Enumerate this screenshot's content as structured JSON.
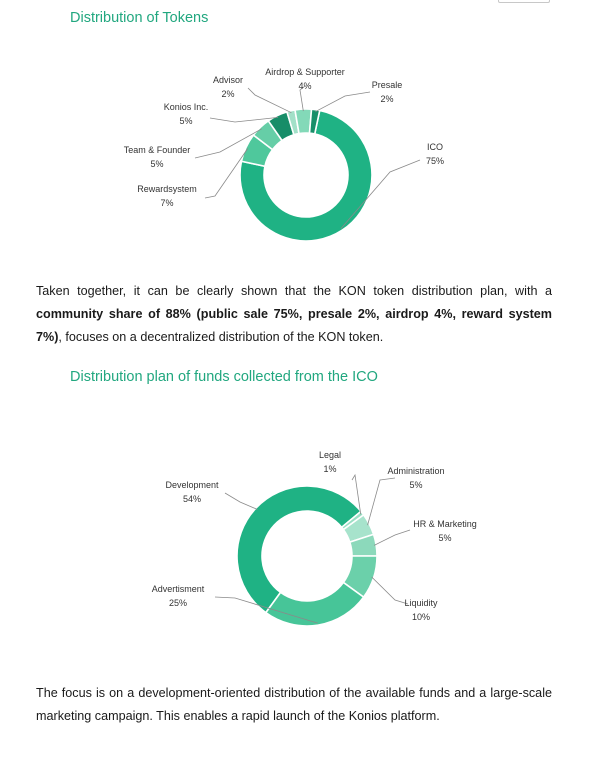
{
  "section1": {
    "heading": "Distribution of Tokens"
  },
  "paragraph1": {
    "lead": "Taken together, it can be clearly shown that the KON token distribution plan, with a ",
    "bold": "community share of 88% (public sale 75%, presale 2%, airdrop 4%, reward system 7%)",
    "tail": ", focuses on a decentralized distribution of the KON token."
  },
  "section2": {
    "heading": "Distribution plan of funds collected from the ICO"
  },
  "paragraph2": {
    "text": "The focus is on a development-oriented distribution of the available funds and a large-scale marketing campaign. This enables a rapid launch of the Konios platform."
  },
  "chart_data": [
    {
      "type": "pie",
      "donut": true,
      "slices": [
        {
          "label": "ICO",
          "value_label": "75%",
          "value": 75,
          "color": "#1fb284"
        },
        {
          "label": "Rewardsystem",
          "value_label": "7%",
          "value": 7,
          "color": "#4fc89c"
        },
        {
          "label": "Team & Founder",
          "value_label": "5%",
          "value": 5,
          "color": "#66cea7"
        },
        {
          "label": "Konios Inc.",
          "value_label": "5%",
          "value": 5,
          "color": "#178d68"
        },
        {
          "label": "Advisor",
          "value_label": "2%",
          "value": 2,
          "color": "#a2e0c8"
        },
        {
          "label": "Airdrop & Supporter",
          "value_label": "4%",
          "value": 4,
          "color": "#83d9b8"
        },
        {
          "label": "Presale",
          "value_label": "2%",
          "value": 2,
          "color": "#188f69"
        }
      ]
    },
    {
      "type": "pie",
      "donut": true,
      "slices": [
        {
          "label": "Development",
          "value_label": "54%",
          "value": 54,
          "color": "#1fb284"
        },
        {
          "label": "Legal",
          "value_label": "1%",
          "value": 1,
          "color": "#9adfc4"
        },
        {
          "label": "Administration",
          "value_label": "5%",
          "value": 5,
          "color": "#a7e3cc"
        },
        {
          "label": "HR & Marketing",
          "value_label": "5%",
          "value": 5,
          "color": "#8cd9bb"
        },
        {
          "label": "Liquidity",
          "value_label": "10%",
          "value": 10,
          "color": "#6bd0aa"
        },
        {
          "label": "Advertisment",
          "value_label": "25%",
          "value": 25,
          "color": "#47c598"
        }
      ]
    }
  ]
}
